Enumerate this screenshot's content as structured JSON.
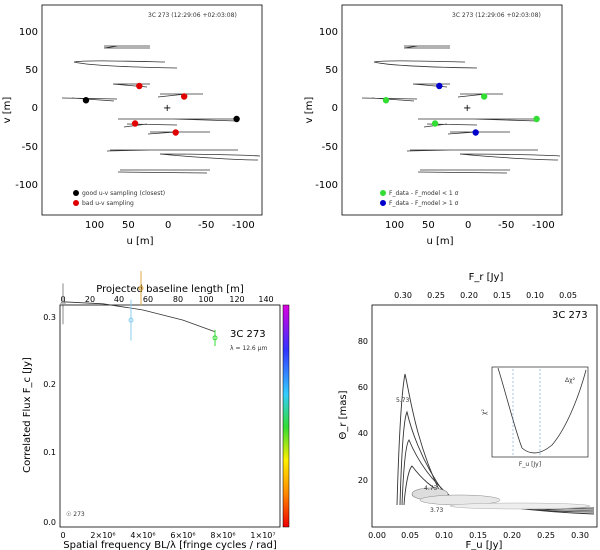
{
  "chart_data": [
    {
      "type": "scatter",
      "id": "uv_geometric",
      "header": "3C 273 (12:29:06 +02:03:08)",
      "xlabel": "u [m]",
      "ylabel": "v [m]",
      "xlim": [
        140,
        -120
      ],
      "ylim": [
        -140,
        140
      ],
      "xticks": [
        "100",
        "50",
        "0",
        "-50",
        "-100"
      ],
      "yticks": [
        "100",
        "50",
        "0",
        "-50",
        "-100"
      ],
      "legend": [
        {
          "label": "good u-v sampling (closest)",
          "color": "#000000"
        },
        {
          "label": "bad u-v sampling",
          "color": "#e00000"
        }
      ],
      "points": [
        {
          "u": 25,
          "v": 32,
          "color": "#e00000"
        },
        {
          "u": -28,
          "v": 18,
          "color": "#e00000"
        },
        {
          "u": 88,
          "v": 13,
          "color": "#000000"
        },
        {
          "u": 30,
          "v": -18,
          "color": "#e00000"
        },
        {
          "u": -18,
          "v": -30,
          "color": "#e00000"
        },
        {
          "u": -90,
          "v": -12,
          "color": "#000000"
        }
      ]
    },
    {
      "type": "scatter",
      "id": "uv_flux",
      "header": "3C 273 (12:29:06 +02:03:08)",
      "xlabel": "u [m]",
      "ylabel": "v [m]",
      "xlim": [
        140,
        -120
      ],
      "ylim": [
        -140,
        140
      ],
      "xticks": [
        "100",
        "50",
        "0",
        "-50",
        "-100"
      ],
      "yticks": [
        "100",
        "50",
        "0",
        "-50",
        "-100"
      ],
      "legend": [
        {
          "label": "F_data - F_model < 1 σ",
          "color": "#33dd33"
        },
        {
          "label": "F_data - F_model > 1 σ",
          "color": "#0000cc"
        }
      ],
      "points": [
        {
          "u": 25,
          "v": 32,
          "color": "#0000cc"
        },
        {
          "u": -28,
          "v": 18,
          "color": "#33dd33"
        },
        {
          "u": 88,
          "v": 13,
          "color": "#33dd33"
        },
        {
          "u": 30,
          "v": -18,
          "color": "#33dd33"
        },
        {
          "u": -18,
          "v": -30,
          "color": "#0000cc"
        },
        {
          "u": -90,
          "v": -12,
          "color": "#33dd33"
        }
      ]
    },
    {
      "type": "scatter",
      "id": "correlated_flux",
      "label": "3C 273",
      "sublabel": "λ = 12.6 μm",
      "xlabel": "Spatial frequency BL/λ [fringe cycles / rad]",
      "ylabel": "Correlated Flux F_c [Jy]",
      "top_xlabel": "Projected baseline length [m]",
      "xlim": [
        0,
        11000000
      ],
      "ylim": [
        0,
        0.32
      ],
      "xticks": [
        "0",
        "2×10⁶",
        "4×10⁶",
        "6×10⁶",
        "8×10⁶",
        "1×10⁷"
      ],
      "yticks": [
        "0.0",
        "0.1",
        "0.2",
        "0.3"
      ],
      "top_xticks": [
        "0",
        "20",
        "40",
        "60",
        "80",
        "100",
        "120",
        "140"
      ],
      "points": [
        {
          "x": 0,
          "y": 0.322,
          "err": 0.03,
          "color": "#888888"
        },
        {
          "x": 3400000,
          "y": 0.298,
          "err": 0.03,
          "color": "#88ccee"
        },
        {
          "x": 3900000,
          "y": 0.345,
          "err": 0.025,
          "color": "#ddaa44"
        },
        {
          "x": 7600000,
          "y": 0.272,
          "err": 0.012,
          "color": "#33dd33"
        }
      ],
      "model_curve": [
        [
          0,
          0.325
        ],
        [
          2000000,
          0.322
        ],
        [
          4000000,
          0.313
        ],
        [
          6000000,
          0.298
        ],
        [
          7600000,
          0.281
        ]
      ],
      "small_legend": "☉ 273"
    },
    {
      "type": "heatmap",
      "id": "chi2_contours",
      "label": "3C 273",
      "xlabel": "F_u [Jy]",
      "ylabel": "Θ_r [mas]",
      "top_xlabel": "F_r [Jy]",
      "xlim": [
        0,
        0.32
      ],
      "ylim": [
        0,
        95
      ],
      "xticks": [
        "0.00",
        "0.05",
        "0.10",
        "0.15",
        "0.20",
        "0.25",
        "0.30"
      ],
      "yticks": [
        "20",
        "40",
        "60",
        "80"
      ],
      "top_xticks": [
        "0.30",
        "0.25",
        "0.20",
        "0.15",
        "0.10",
        "0.05"
      ],
      "contour_labels": [
        "5.73",
        "4.73",
        "3.73"
      ],
      "inset": {
        "label": "Δχ²",
        "xlabel": "F_u [Jy]",
        "ylabel": "χ²"
      }
    }
  ]
}
